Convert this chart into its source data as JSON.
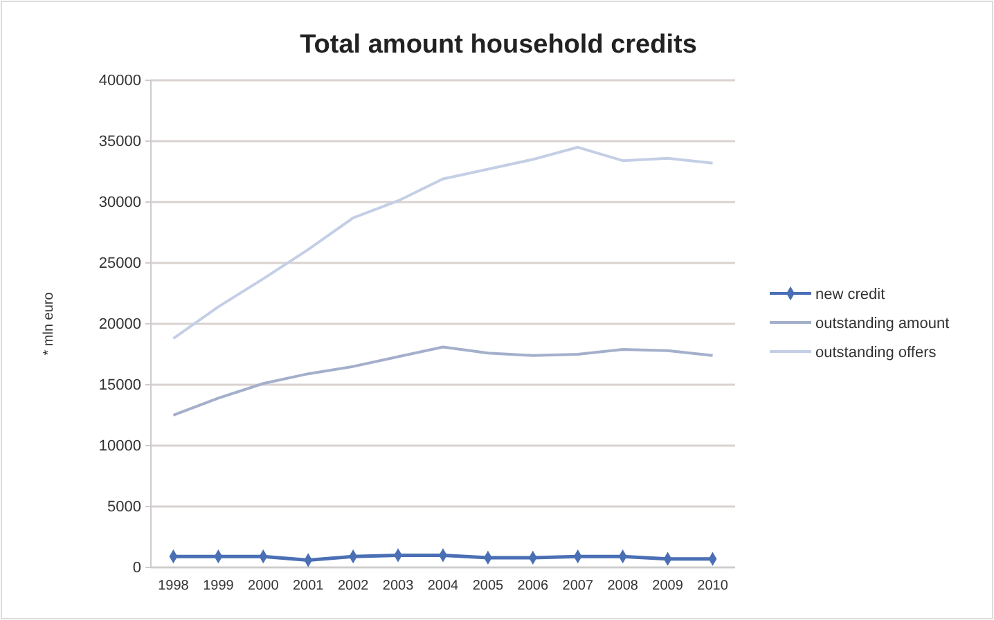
{
  "chart_data": {
    "type": "line",
    "title": "Total amount household credits",
    "ylabel": "* mln euro",
    "categories": [
      "1998",
      "1999",
      "2000",
      "2001",
      "2002",
      "2003",
      "2004",
      "2005",
      "2006",
      "2007",
      "2008",
      "2009",
      "2010"
    ],
    "series": [
      {
        "name": "new credit",
        "color": "#4a6fb5",
        "marker": "diamond",
        "values": [
          900,
          900,
          900,
          600,
          900,
          1000,
          1000,
          800,
          800,
          900,
          900,
          700,
          700
        ]
      },
      {
        "name": "outstanding amount",
        "color": "#a4afcb",
        "values": [
          12500,
          13900,
          15100,
          15900,
          16500,
          17300,
          18100,
          17600,
          17400,
          17500,
          17900,
          17800,
          17400
        ]
      },
      {
        "name": "outstanding offers",
        "color": "#c4cfe6",
        "values": [
          18800,
          21400,
          23700,
          26100,
          28700,
          30100,
          31900,
          32700,
          33500,
          34500,
          33400,
          33600,
          33200
        ]
      }
    ],
    "ylim": [
      0,
      40000
    ],
    "yticks": [
      0,
      5000,
      10000,
      15000,
      20000,
      25000,
      30000,
      35000,
      40000
    ],
    "grid": "y",
    "legend": "right"
  }
}
